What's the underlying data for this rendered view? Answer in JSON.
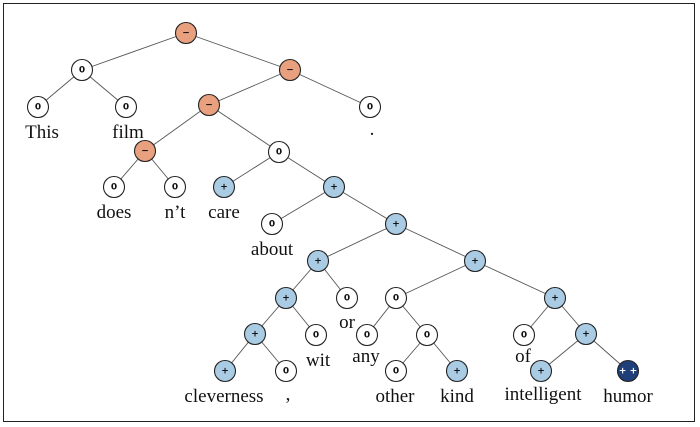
{
  "colors": {
    "neutral": "#ffffff",
    "negative": "#e8a07e",
    "positive": "#a9cbe3",
    "very_positive": "#1f3f7a"
  },
  "nodes": [
    {
      "id": "root",
      "label": "−",
      "sentiment": "negative"
    },
    {
      "id": "n_this_film",
      "label": "0",
      "sentiment": "neutral"
    },
    {
      "id": "n_rest",
      "label": "−",
      "sentiment": "negative"
    },
    {
      "id": "n_this",
      "label": "0",
      "sentiment": "neutral",
      "word": "This"
    },
    {
      "id": "n_film",
      "label": "0",
      "sentiment": "neutral",
      "word": "film"
    },
    {
      "id": "n_vp",
      "label": "−",
      "sentiment": "negative"
    },
    {
      "id": "n_period",
      "label": "0",
      "sentiment": "neutral",
      "word": "."
    },
    {
      "id": "n_doesnt",
      "label": "−",
      "sentiment": "negative"
    },
    {
      "id": "n_care_about",
      "label": "0",
      "sentiment": "neutral"
    },
    {
      "id": "n_does",
      "label": "0",
      "sentiment": "neutral",
      "word": "does"
    },
    {
      "id": "n_nt",
      "label": "0",
      "sentiment": "neutral",
      "word": "n’t"
    },
    {
      "id": "n_care",
      "label": "+",
      "sentiment": "positive",
      "word": "care"
    },
    {
      "id": "n_about_pp",
      "label": "+",
      "sentiment": "positive"
    },
    {
      "id": "n_about",
      "label": "0",
      "sentiment": "neutral",
      "word": "about"
    },
    {
      "id": "n_np",
      "label": "+",
      "sentiment": "positive"
    },
    {
      "id": "n_clev_wit",
      "label": "+",
      "sentiment": "positive"
    },
    {
      "id": "n_or_rest",
      "label": "+",
      "sentiment": "positive"
    },
    {
      "id": "n_clev_comma",
      "label": "+",
      "sentiment": "positive"
    },
    {
      "id": "n_or",
      "label": "0",
      "sentiment": "neutral",
      "word": "or"
    },
    {
      "id": "n_any_kind",
      "label": "0",
      "sentiment": "neutral"
    },
    {
      "id": "n_of_humor",
      "label": "+",
      "sentiment": "positive"
    },
    {
      "id": "n_clev_inner",
      "label": "+",
      "sentiment": "positive"
    },
    {
      "id": "n_wit",
      "label": "0",
      "sentiment": "neutral",
      "word": "wit"
    },
    {
      "id": "n_any",
      "label": "0",
      "sentiment": "neutral",
      "word": "any"
    },
    {
      "id": "n_other_kind",
      "label": "0",
      "sentiment": "neutral"
    },
    {
      "id": "n_of",
      "label": "0",
      "sentiment": "neutral",
      "word": "of"
    },
    {
      "id": "n_intel_humor",
      "label": "+",
      "sentiment": "positive"
    },
    {
      "id": "n_cleverness",
      "label": "+",
      "sentiment": "positive",
      "word": "cleverness"
    },
    {
      "id": "n_comma",
      "label": "0",
      "sentiment": "neutral",
      "word": ","
    },
    {
      "id": "n_other",
      "label": "0",
      "sentiment": "neutral",
      "word": "other"
    },
    {
      "id": "n_kind",
      "label": "+",
      "sentiment": "positive",
      "word": "kind"
    },
    {
      "id": "n_intelligent",
      "label": "+",
      "sentiment": "positive",
      "word": "intelligent"
    },
    {
      "id": "n_humor",
      "label": "+ +",
      "sentiment": "very_positive",
      "word": "humor"
    }
  ],
  "edges": [
    [
      "root",
      "n_this_film"
    ],
    [
      "root",
      "n_rest"
    ],
    [
      "n_this_film",
      "n_this"
    ],
    [
      "n_this_film",
      "n_film"
    ],
    [
      "n_rest",
      "n_vp"
    ],
    [
      "n_rest",
      "n_period"
    ],
    [
      "n_vp",
      "n_doesnt"
    ],
    [
      "n_vp",
      "n_care_about"
    ],
    [
      "n_doesnt",
      "n_does"
    ],
    [
      "n_doesnt",
      "n_nt"
    ],
    [
      "n_care_about",
      "n_care"
    ],
    [
      "n_care_about",
      "n_about_pp"
    ],
    [
      "n_about_pp",
      "n_about"
    ],
    [
      "n_about_pp",
      "n_np"
    ],
    [
      "n_np",
      "n_clev_wit"
    ],
    [
      "n_np",
      "n_or_rest"
    ],
    [
      "n_clev_wit",
      "n_clev_comma"
    ],
    [
      "n_clev_wit",
      "n_or"
    ],
    [
      "n_clev_comma",
      "n_clev_inner"
    ],
    [
      "n_clev_comma",
      "n_wit"
    ],
    [
      "n_clev_inner",
      "n_cleverness"
    ],
    [
      "n_clev_inner",
      "n_comma"
    ],
    [
      "n_or_rest",
      "n_any_kind"
    ],
    [
      "n_or_rest",
      "n_of_humor"
    ],
    [
      "n_any_kind",
      "n_any"
    ],
    [
      "n_any_kind",
      "n_other_kind"
    ],
    [
      "n_other_kind",
      "n_other"
    ],
    [
      "n_other_kind",
      "n_kind"
    ],
    [
      "n_of_humor",
      "n_of"
    ],
    [
      "n_of_humor",
      "n_intel_humor"
    ],
    [
      "n_intel_humor",
      "n_intelligent"
    ],
    [
      "n_intel_humor",
      "n_humor"
    ]
  ]
}
